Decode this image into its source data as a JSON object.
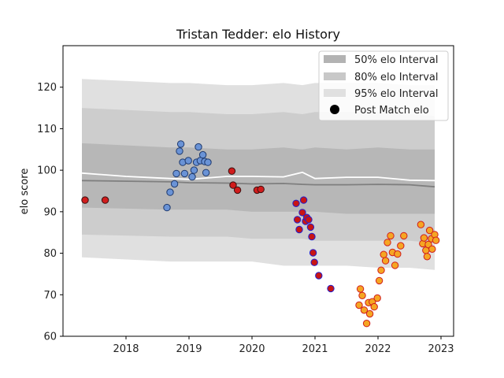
{
  "chart_data": {
    "type": "scatter",
    "title": "Tristan Tedder: elo History",
    "xlabel": "",
    "ylabel": "elo score",
    "xlim": [
      2017.0,
      2023.2
    ],
    "ylim": [
      60,
      130
    ],
    "xticks": [
      2018,
      2019,
      2020,
      2021,
      2022,
      2023
    ],
    "yticks": [
      60,
      70,
      80,
      90,
      100,
      110,
      120
    ],
    "legend": {
      "position": "top-right",
      "entries": [
        {
          "label": "50% elo Interval",
          "kind": "band",
          "color": "#b3b3b3"
        },
        {
          "label": "80% elo Interval",
          "kind": "band",
          "color": "#c8c8c8"
        },
        {
          "label": "95% elo Interval",
          "kind": "band",
          "color": "#e0e0e0"
        },
        {
          "label": "Post Match elo",
          "kind": "marker",
          "color": "#000000"
        }
      ]
    },
    "bands": {
      "x": [
        2017.3,
        2018.7,
        2019.0,
        2019.6,
        2020.0,
        2020.5,
        2020.8,
        2021.0,
        2021.5,
        2022.0,
        2022.5,
        2022.9
      ],
      "p95_upper": [
        122,
        121,
        121,
        120.5,
        120.5,
        121,
        120.5,
        121,
        121,
        121,
        120.5,
        120.5
      ],
      "p95_lower": [
        79,
        78,
        78,
        78,
        78,
        77,
        77,
        77,
        77,
        76.5,
        76.5,
        76
      ],
      "p80_upper": [
        115,
        114,
        114,
        113.5,
        113.5,
        114,
        113.5,
        114,
        114,
        114,
        113.5,
        113
      ],
      "p80_lower": [
        84.5,
        84,
        84,
        84,
        83.5,
        83.5,
        83.5,
        83,
        83,
        83,
        83,
        82.5
      ],
      "p50_upper": [
        106.5,
        105.5,
        105.5,
        105,
        105,
        105.5,
        105,
        105.5,
        105,
        105.5,
        105,
        105
      ],
      "p50_lower": [
        91,
        90.5,
        90.5,
        90.5,
        90,
        90,
        90,
        90,
        89.5,
        89.5,
        89.5,
        89.5
      ]
    },
    "line_median": {
      "color": "#7f7f7f",
      "x": [
        2017.3,
        2018.7,
        2019.0,
        2019.6,
        2020.0,
        2020.5,
        2020.8,
        2021.0,
        2021.5,
        2022.0,
        2022.5,
        2022.9
      ],
      "y": [
        97.5,
        97.2,
        97,
        96.9,
        96.7,
        96.8,
        96.6,
        96.5,
        96.5,
        96.6,
        96.5,
        96
      ]
    },
    "line_mean": {
      "color": "#ffffff",
      "x": [
        2017.3,
        2018.0,
        2018.7,
        2019.0,
        2019.6,
        2020.0,
        2020.5,
        2020.8,
        2021.0,
        2021.5,
        2022.0,
        2022.5,
        2022.9
      ],
      "y": [
        99.3,
        98.5,
        98,
        97.8,
        98.5,
        98.5,
        98.4,
        99.5,
        98,
        98.3,
        98.3,
        97.6,
        97.5
      ]
    },
    "series": [
      {
        "name": "",
        "fill": "#d01c1c",
        "edge": "#3a1010",
        "points": [
          [
            2017.35,
            92.8
          ],
          [
            2017.67,
            92.8
          ],
          [
            2019.68,
            99.8
          ],
          [
            2019.7,
            96.4
          ],
          [
            2019.77,
            95.2
          ],
          [
            2020.08,
            95.2
          ],
          [
            2020.14,
            95.4
          ]
        ]
      },
      {
        "name": "",
        "fill": "#6a93d6",
        "edge": "#1f3a6e",
        "points": [
          [
            2018.65,
            91
          ],
          [
            2018.7,
            94.7
          ],
          [
            2018.77,
            96.7
          ],
          [
            2018.8,
            99.2
          ],
          [
            2018.85,
            104.6
          ],
          [
            2018.87,
            106.3
          ],
          [
            2018.9,
            101.9
          ],
          [
            2018.93,
            99.2
          ],
          [
            2018.99,
            102.3
          ],
          [
            2019.05,
            98.4
          ],
          [
            2019.08,
            100
          ],
          [
            2019.12,
            101.9
          ],
          [
            2019.15,
            105.6
          ],
          [
            2019.18,
            102.3
          ],
          [
            2019.22,
            103.7
          ],
          [
            2019.25,
            102.1
          ],
          [
            2019.27,
            99.4
          ],
          [
            2019.3,
            101.9
          ]
        ]
      },
      {
        "name": "",
        "fill": "#c81414",
        "edge": "#2020d0",
        "points": [
          [
            2020.7,
            92
          ],
          [
            2020.72,
            88.1
          ],
          [
            2020.75,
            85.7
          ],
          [
            2020.8,
            89.8
          ],
          [
            2020.82,
            92.8
          ],
          [
            2020.85,
            87.7
          ],
          [
            2020.87,
            88.6
          ],
          [
            2020.9,
            88.1
          ],
          [
            2020.93,
            86.3
          ],
          [
            2020.95,
            84
          ],
          [
            2020.97,
            80.1
          ],
          [
            2020.99,
            77.8
          ],
          [
            2021.06,
            74.6
          ],
          [
            2021.25,
            71.5
          ]
        ]
      },
      {
        "name": "",
        "fill": "#f5a623",
        "edge": "#d01c1c",
        "points": [
          [
            2021.7,
            67.5
          ],
          [
            2021.72,
            71.4
          ],
          [
            2021.75,
            69.8
          ],
          [
            2021.78,
            66.3
          ],
          [
            2021.82,
            63.1
          ],
          [
            2021.85,
            68.1
          ],
          [
            2021.87,
            65.4
          ],
          [
            2021.91,
            68.3
          ],
          [
            2021.94,
            67.1
          ],
          [
            2021.99,
            69.2
          ],
          [
            2022.02,
            73.4
          ],
          [
            2022.05,
            75.9
          ],
          [
            2022.09,
            79.7
          ],
          [
            2022.12,
            78.2
          ],
          [
            2022.15,
            82.6
          ],
          [
            2022.2,
            84.2
          ],
          [
            2022.23,
            80.2
          ],
          [
            2022.27,
            77.1
          ],
          [
            2022.31,
            79.8
          ],
          [
            2022.36,
            81.8
          ],
          [
            2022.41,
            84.2
          ],
          [
            2022.68,
            86.9
          ],
          [
            2022.71,
            82.3
          ],
          [
            2022.73,
            83.7
          ],
          [
            2022.76,
            80.7
          ],
          [
            2022.78,
            79.2
          ],
          [
            2022.8,
            82.1
          ],
          [
            2022.82,
            85.5
          ],
          [
            2022.85,
            83.5
          ],
          [
            2022.86,
            81
          ],
          [
            2022.9,
            84.5
          ],
          [
            2022.92,
            83.1
          ]
        ]
      }
    ]
  }
}
